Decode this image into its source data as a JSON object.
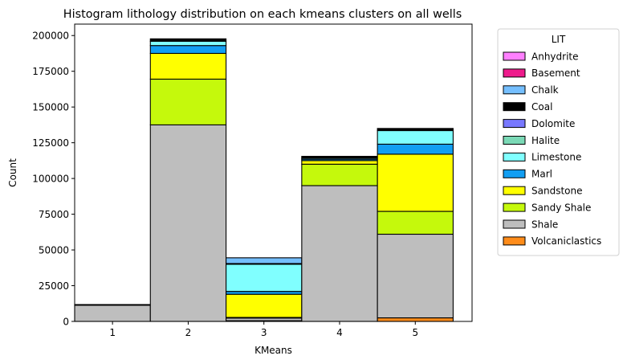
{
  "chart_data": {
    "type": "bar",
    "stacked": true,
    "title": "Histogram lithology distribution on each kmeans clusters on all wells",
    "xlabel": "KMeans",
    "ylabel": "Count",
    "categories": [
      "1",
      "2",
      "3",
      "4",
      "5"
    ],
    "xlim": [
      0.5,
      5.75
    ],
    "ylim": [
      0,
      208000
    ],
    "yticks": [
      0,
      25000,
      50000,
      75000,
      100000,
      125000,
      150000,
      175000,
      200000
    ],
    "grid": false,
    "legend": {
      "title": "LIT",
      "placement": "outside-right"
    },
    "series": [
      {
        "name": "Volcaniclastics",
        "color": "#ff8c1a",
        "values": [
          0,
          0,
          500,
          0,
          2500
        ]
      },
      {
        "name": "Shale",
        "color": "#bebebe",
        "values": [
          11300,
          137500,
          1800,
          95000,
          58500
        ]
      },
      {
        "name": "Sandy Shale",
        "color": "#c5f90c",
        "values": [
          0,
          32000,
          500,
          15000,
          16000
        ]
      },
      {
        "name": "Sandstone",
        "color": "#ffff00",
        "values": [
          0,
          18000,
          16200,
          2500,
          40000
        ]
      },
      {
        "name": "Marl",
        "color": "#129ef2",
        "values": [
          0,
          5500,
          2000,
          1000,
          7000
        ]
      },
      {
        "name": "Limestone",
        "color": "#80ffff",
        "values": [
          0,
          3000,
          19000,
          800,
          9500
        ]
      },
      {
        "name": "Halite",
        "color": "#7bd9b6",
        "values": [
          0,
          0,
          0,
          0,
          0
        ]
      },
      {
        "name": "Dolomite",
        "color": "#7878ff",
        "values": [
          0,
          0,
          0,
          0,
          0
        ]
      },
      {
        "name": "Coal",
        "color": "#000000",
        "values": [
          500,
          1700,
          500,
          1200,
          1500
        ]
      },
      {
        "name": "Chalk",
        "color": "#75bfff",
        "values": [
          0,
          0,
          4000,
          0,
          0
        ]
      },
      {
        "name": "Basement",
        "color": "#ee1b8c",
        "values": [
          0,
          0,
          0,
          0,
          0
        ]
      },
      {
        "name": "Anhydrite",
        "color": "#ff80ff",
        "values": [
          0,
          0,
          0,
          0,
          0
        ]
      }
    ]
  }
}
